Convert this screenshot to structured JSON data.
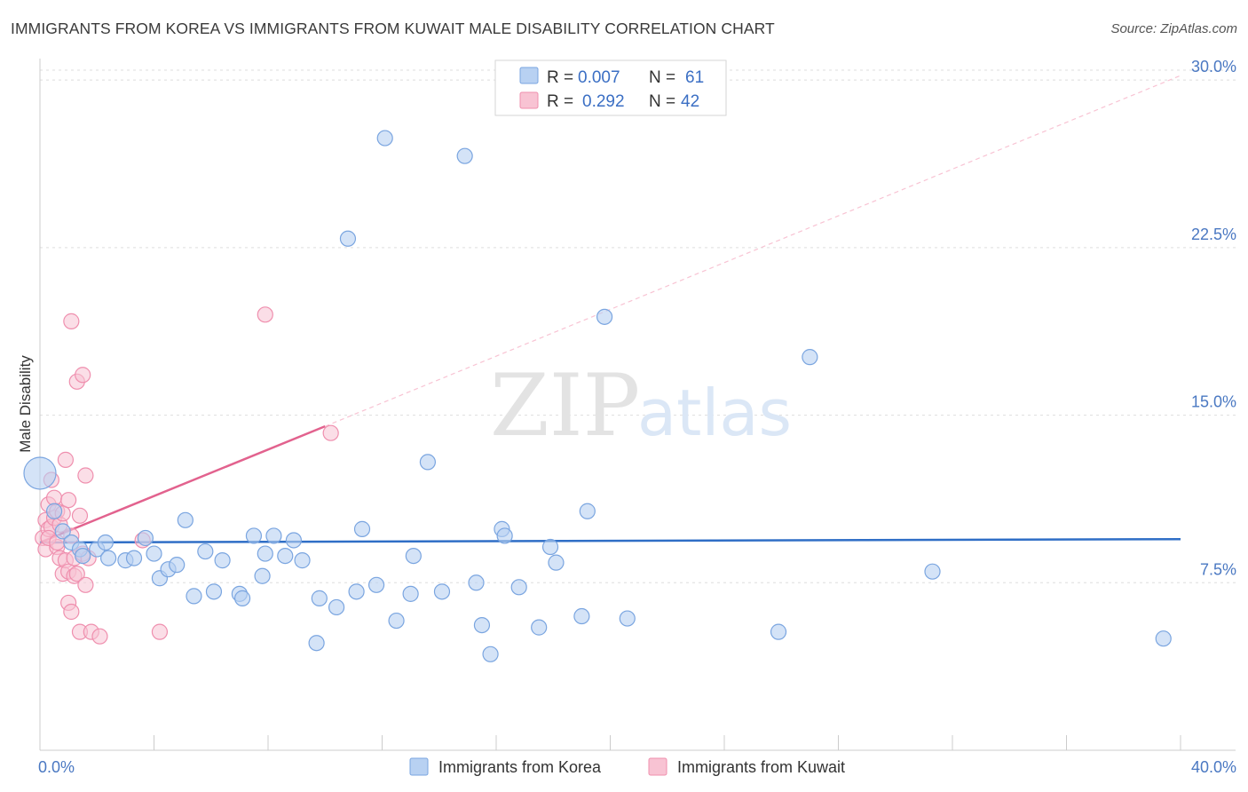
{
  "title": "IMMIGRANTS FROM KOREA VS IMMIGRANTS FROM KUWAIT MALE DISABILITY CORRELATION CHART",
  "source": "Source: ZipAtlas.com",
  "watermark": {
    "zip": "ZIP",
    "atlas": "atlas"
  },
  "colors": {
    "korea_fill": "#b8d1f2",
    "korea_stroke": "#7aa5e0",
    "korea_line": "#2f6ec6",
    "kuwait_fill": "#f8c3d3",
    "kuwait_stroke": "#ef8fae",
    "kuwait_line": "#e2628e",
    "axis_label": "#4a78c2",
    "grid": "#dddddd"
  },
  "legend": {
    "rows": [
      {
        "r_label": "R = ",
        "r_value": "0.007",
        "n_label": "N = ",
        "n_value": "61"
      },
      {
        "r_label": "R = ",
        "r_value": "0.292",
        "n_label": "N = ",
        "n_value": "42"
      }
    ]
  },
  "bottom_legend": {
    "korea": "Immigrants from Korea",
    "kuwait": "Immigrants from Kuwait"
  },
  "chart_data": {
    "type": "scatter",
    "title": "IMMIGRANTS FROM KOREA VS IMMIGRANTS FROM KUWAIT MALE DISABILITY CORRELATION CHART",
    "xlabel": "",
    "ylabel": "Male Disability",
    "xlim": [
      0,
      40
    ],
    "ylim": [
      0,
      30.8
    ],
    "x_tick_labels": [
      "0.0%",
      "40.0%"
    ],
    "y_ticks": [
      7.5,
      15.0,
      22.5,
      30.0
    ],
    "y_tick_labels": [
      "7.5%",
      "15.0%",
      "22.5%",
      "30.0%"
    ],
    "grid": true,
    "legend_position": "top-center",
    "series": [
      {
        "name": "Immigrants from Korea",
        "R": 0.007,
        "N": 61,
        "trend": {
          "x": [
            0,
            40
          ],
          "y": [
            9.3,
            9.45
          ]
        },
        "points": [
          [
            0.0,
            12.4,
            3
          ],
          [
            0.5,
            10.7,
            1
          ],
          [
            0.8,
            9.8,
            1
          ],
          [
            1.1,
            9.3,
            1
          ],
          [
            1.4,
            9.0,
            1
          ],
          [
            1.5,
            8.7,
            1
          ],
          [
            2.0,
            9.0,
            1
          ],
          [
            2.3,
            9.3,
            1
          ],
          [
            2.4,
            8.6,
            1
          ],
          [
            3.0,
            8.5,
            1
          ],
          [
            3.3,
            8.6,
            1
          ],
          [
            3.7,
            9.5,
            1
          ],
          [
            4.0,
            8.8,
            1
          ],
          [
            4.2,
            7.7,
            1
          ],
          [
            4.5,
            8.1,
            1
          ],
          [
            4.8,
            8.3,
            1
          ],
          [
            5.1,
            10.3,
            1
          ],
          [
            5.4,
            6.9,
            1
          ],
          [
            5.8,
            8.9,
            1
          ],
          [
            6.1,
            7.1,
            1
          ],
          [
            6.4,
            8.5,
            1
          ],
          [
            7.0,
            7.0,
            1
          ],
          [
            7.1,
            6.8,
            1
          ],
          [
            7.5,
            9.6,
            1
          ],
          [
            7.8,
            7.8,
            1
          ],
          [
            7.9,
            8.8,
            1
          ],
          [
            8.2,
            9.6,
            1
          ],
          [
            8.6,
            8.7,
            1
          ],
          [
            8.9,
            9.4,
            1
          ],
          [
            9.2,
            8.5,
            1
          ],
          [
            9.7,
            4.8,
            1
          ],
          [
            9.8,
            6.8,
            1
          ],
          [
            10.4,
            6.4,
            1
          ],
          [
            10.8,
            22.9,
            1
          ],
          [
            11.1,
            7.1,
            1
          ],
          [
            11.3,
            9.9,
            1
          ],
          [
            11.8,
            7.4,
            1
          ],
          [
            12.1,
            27.4,
            1
          ],
          [
            12.5,
            5.8,
            1
          ],
          [
            13.0,
            7.0,
            1
          ],
          [
            13.1,
            8.7,
            1
          ],
          [
            13.6,
            12.9,
            1
          ],
          [
            14.1,
            7.1,
            1
          ],
          [
            14.9,
            26.6,
            1
          ],
          [
            15.3,
            7.5,
            1
          ],
          [
            15.5,
            5.6,
            1
          ],
          [
            15.8,
            4.3,
            1
          ],
          [
            16.2,
            9.9,
            1
          ],
          [
            16.3,
            9.6,
            1
          ],
          [
            16.8,
            7.3,
            1
          ],
          [
            17.5,
            5.5,
            1
          ],
          [
            17.9,
            9.1,
            1
          ],
          [
            18.1,
            8.4,
            1
          ],
          [
            19.0,
            6.0,
            1
          ],
          [
            19.2,
            10.7,
            1
          ],
          [
            19.8,
            19.4,
            1
          ],
          [
            20.6,
            5.9,
            1
          ],
          [
            25.9,
            5.3,
            1
          ],
          [
            27.0,
            17.6,
            1
          ],
          [
            31.3,
            8.0,
            1
          ],
          [
            39.4,
            5.0,
            1
          ]
        ]
      },
      {
        "name": "Immigrants from Kuwait",
        "R": 0.292,
        "N": 42,
        "trend": {
          "x": [
            0,
            10
          ],
          "y": [
            9.3,
            14.5
          ]
        },
        "trend_extension": {
          "x": [
            10,
            40
          ],
          "y": [
            14.5,
            30.2
          ]
        },
        "points": [
          [
            0.1,
            9.5,
            1
          ],
          [
            0.2,
            10.3,
            1
          ],
          [
            0.2,
            9.0,
            1
          ],
          [
            0.3,
            9.9,
            1
          ],
          [
            0.3,
            11.0,
            1
          ],
          [
            0.4,
            12.1,
            1
          ],
          [
            0.4,
            10.0,
            1
          ],
          [
            0.5,
            10.4,
            1
          ],
          [
            0.5,
            11.3,
            1
          ],
          [
            0.6,
            10.7,
            1
          ],
          [
            0.6,
            9.1,
            1
          ],
          [
            0.7,
            10.1,
            1
          ],
          [
            0.7,
            8.6,
            1
          ],
          [
            0.8,
            10.6,
            1
          ],
          [
            0.8,
            7.9,
            1
          ],
          [
            0.9,
            13.0,
            1
          ],
          [
            0.9,
            8.5,
            1
          ],
          [
            1.0,
            8.0,
            1
          ],
          [
            1.0,
            11.2,
            1
          ],
          [
            1.0,
            6.6,
            1
          ],
          [
            1.1,
            9.6,
            1
          ],
          [
            1.1,
            6.2,
            1
          ],
          [
            1.2,
            8.6,
            1
          ],
          [
            1.1,
            19.2,
            1
          ],
          [
            1.2,
            7.8,
            1
          ],
          [
            1.3,
            16.5,
            1
          ],
          [
            1.3,
            7.9,
            1
          ],
          [
            1.4,
            10.5,
            1
          ],
          [
            1.4,
            5.3,
            1
          ],
          [
            1.5,
            16.8,
            1
          ],
          [
            1.5,
            8.8,
            1
          ],
          [
            1.6,
            12.3,
            1
          ],
          [
            1.6,
            7.4,
            1
          ],
          [
            1.7,
            8.6,
            1
          ],
          [
            1.8,
            5.3,
            1
          ],
          [
            2.1,
            5.1,
            1
          ],
          [
            3.6,
            9.4,
            1
          ],
          [
            4.2,
            5.3,
            1
          ],
          [
            7.9,
            19.5,
            1
          ],
          [
            10.2,
            14.2,
            1
          ],
          [
            0.3,
            9.5,
            1
          ],
          [
            0.6,
            9.3,
            1
          ]
        ]
      }
    ]
  }
}
